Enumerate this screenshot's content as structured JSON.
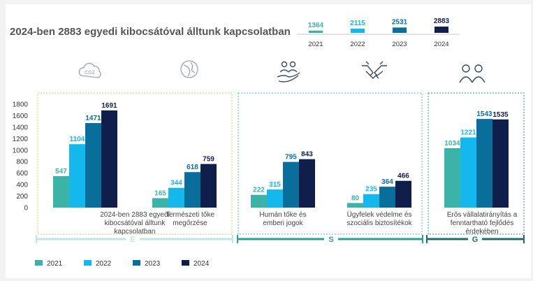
{
  "title": "2024-ben 2883 egyedi kibocsátóval álltunk kapcsolatban",
  "colors": {
    "2021": "#3bb3a8",
    "2022": "#14b8ec",
    "2023": "#0a6e9c",
    "2024": "#0f1e4a"
  },
  "band_colors": {
    "E": "#bfe6e1",
    "S": "#2e9e96",
    "G": "#1f6d6a"
  },
  "legend": [
    "2021",
    "2022",
    "2023",
    "2024"
  ],
  "icons": [
    "co2-cloud-icon",
    "globe-leaf-icon",
    "people-hand-icon",
    "handshake-icon",
    "two-people-icon"
  ],
  "chart_data": {
    "type": "bar",
    "title": "2024-ben 2883 egyedi kibocsátóval álltunk kapcsolatban",
    "ylim": [
      0,
      1800
    ],
    "yticks": [
      0,
      200,
      400,
      600,
      800,
      1000,
      1200,
      1400,
      1600,
      1800
    ],
    "categories": [
      "2024-ben 2883 egyedi kibocsátóval álltunk kapcsolatban",
      "Természeti tőke megőrzése",
      "Humán tőke és emberi jogok",
      "Ügyfelek védelme és szociális biztosítékok",
      "Erős vállalatirányítás a fenntartható fejlődés érdekében"
    ],
    "category_lines": [
      [
        "2024-ben 2883 egyedi",
        "kibocsátóval álltunk",
        "kapcsolatban"
      ],
      [
        "Természeti tőke",
        "megőrzése"
      ],
      [
        "Humán tőke és",
        "emberi jogok"
      ],
      [
        "Ügyfelek védelme és",
        "szociális biztosítékok"
      ],
      [
        "Erős vállalatirányítás a",
        "fenntartható fejlődés",
        "érdekében"
      ]
    ],
    "series": [
      {
        "name": "2021",
        "values": [
          547,
          165,
          222,
          80,
          1034
        ]
      },
      {
        "name": "2022",
        "values": [
          1104,
          344,
          315,
          235,
          1221
        ]
      },
      {
        "name": "2023",
        "values": [
          1471,
          618,
          795,
          364,
          1543
        ]
      },
      {
        "name": "2024",
        "values": [
          1691,
          759,
          843,
          466,
          1535
        ]
      }
    ],
    "inset": {
      "type": "bar",
      "categories": [
        "2021",
        "2022",
        "2023",
        "2024"
      ],
      "values": [
        1364,
        2115,
        2531,
        2883
      ]
    },
    "groups": [
      {
        "label": "E",
        "categories": [
          0,
          1
        ]
      },
      {
        "label": "S",
        "categories": [
          2,
          3
        ]
      },
      {
        "label": "G",
        "categories": [
          4
        ]
      }
    ],
    "grid": false,
    "legend_position": "bottom-left"
  }
}
